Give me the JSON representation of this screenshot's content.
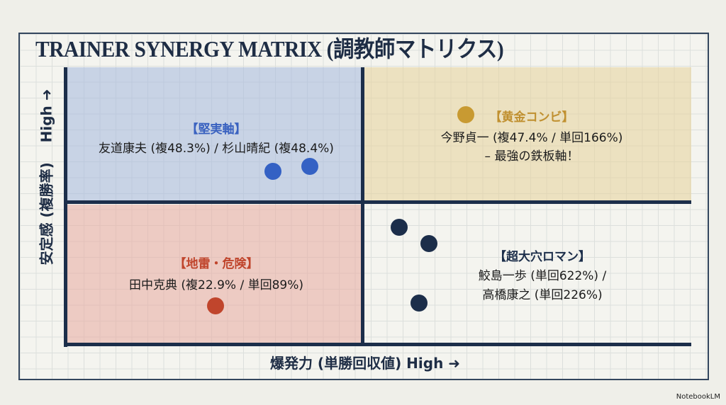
{
  "title": "TRAINER SYNERGY MATRIX (調教師マトリクス)",
  "axes": {
    "y_label": "安定感 (複勝率)",
    "y_high": "High ➜",
    "x_label": "爆発力 (単勝回収値) High ➜"
  },
  "quadrants": {
    "top_left": {
      "heading": "【堅実軸】",
      "line1": "友道康夫 (複48.3%) / 杉山晴紀 (複48.4%)",
      "color": "#3a62c0"
    },
    "top_right": {
      "heading": "【黄金コンビ】",
      "line1": "今野貞一 (複47.4% / 単回166%)",
      "line2": "– 最強の鉄板軸！",
      "color": "#c09030"
    },
    "bottom_left": {
      "heading": "【地雷・危険】",
      "line1": "田中克典 (複22.9% / 単回89%)",
      "color": "#c0452c"
    },
    "bottom_right": {
      "heading": "【超大穴ロマン】",
      "line1": "鮫島一歩 (単回622%) /",
      "line2": "高橋康之 (単回226%)",
      "color": "#1c2e4a"
    }
  },
  "watermark": "NotebookLM"
}
